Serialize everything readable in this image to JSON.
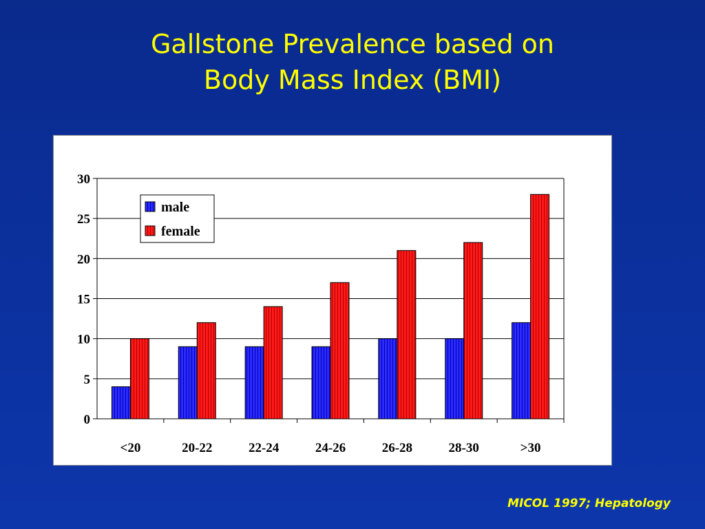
{
  "slide": {
    "title_line1": "Gallstone Prevalence based on",
    "title_line2": "Body Mass Index (BMI)",
    "source": "MICOL 1997; Hepatology"
  },
  "colors": {
    "male": "#2b2bff",
    "female": "#ff1a1a",
    "title": "#ffff00",
    "background": "#0b2f9a"
  },
  "chart_data": {
    "type": "bar",
    "categories": [
      "<20",
      "20-22",
      "22-24",
      "24-26",
      "26-28",
      "28-30",
      ">30"
    ],
    "series": [
      {
        "name": "male",
        "values": [
          4,
          9,
          9,
          9,
          10,
          10,
          12
        ]
      },
      {
        "name": "female",
        "values": [
          10,
          12,
          14,
          17,
          21,
          22,
          28
        ]
      }
    ],
    "yticks": [
      "0",
      "5",
      "10",
      "15",
      "20",
      "25",
      "30"
    ],
    "ylim": [
      0,
      30
    ],
    "grid": true,
    "legend": "top-left"
  }
}
